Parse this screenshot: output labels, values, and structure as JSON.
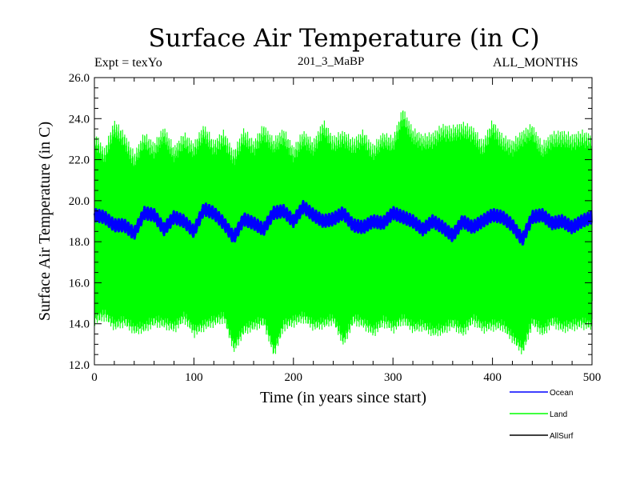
{
  "chart_data": {
    "type": "line",
    "title": "Surface Air Temperature (in C)",
    "left_note": "Expt = texYo",
    "center_note": "201_3_MaBP",
    "right_note": "ALL_MONTHS",
    "xlabel": "Time (in years since start)",
    "ylabel": "Surface Air Temperature (in C)",
    "xlim": [
      0,
      500
    ],
    "ylim": [
      12.0,
      26.0
    ],
    "x_ticks": [
      "0",
      "100",
      "200",
      "300",
      "400",
      "500"
    ],
    "y_ticks": [
      "12.0",
      "14.0",
      "16.0",
      "18.0",
      "20.0",
      "22.0",
      "24.0",
      "26.0"
    ],
    "grid": false,
    "legend_position": "bottom-right, below plot",
    "series": [
      {
        "name": "Ocean",
        "color": "#0000ff",
        "x": [
          0,
          10,
          20,
          30,
          40,
          50,
          60,
          70,
          80,
          90,
          100,
          110,
          120,
          130,
          140,
          150,
          160,
          170,
          180,
          190,
          200,
          210,
          220,
          230,
          240,
          250,
          260,
          270,
          280,
          290,
          300,
          310,
          320,
          330,
          340,
          350,
          360,
          370,
          380,
          390,
          400,
          410,
          420,
          430,
          440,
          450,
          460,
          470,
          480,
          490,
          500
        ],
        "y": [
          19.3,
          19.2,
          18.8,
          18.8,
          18.4,
          19.4,
          19.3,
          18.6,
          19.2,
          19.0,
          18.5,
          19.6,
          19.4,
          18.9,
          18.2,
          19.1,
          18.9,
          18.6,
          19.4,
          19.5,
          19.0,
          19.7,
          19.3,
          19.0,
          19.1,
          19.4,
          18.8,
          18.7,
          19.0,
          18.9,
          19.4,
          19.2,
          19.0,
          18.6,
          19.0,
          18.7,
          18.3,
          19.0,
          18.7,
          19.0,
          19.3,
          19.2,
          18.8,
          18.1,
          19.2,
          19.3,
          18.9,
          19.0,
          18.7,
          19.0,
          19.2
        ]
      },
      {
        "name": "Land",
        "color": "#00ff00",
        "x": [
          0,
          10,
          20,
          30,
          40,
          50,
          60,
          70,
          80,
          90,
          100,
          110,
          120,
          130,
          140,
          150,
          160,
          170,
          180,
          190,
          200,
          210,
          220,
          230,
          240,
          250,
          260,
          270,
          280,
          290,
          300,
          310,
          320,
          330,
          340,
          350,
          360,
          370,
          380,
          390,
          400,
          410,
          420,
          430,
          440,
          450,
          460,
          470,
          480,
          490,
          500
        ],
        "max": [
          23.5,
          22.6,
          24.0,
          23.4,
          22.4,
          23.4,
          22.9,
          23.7,
          22.7,
          23.4,
          22.9,
          23.8,
          23.0,
          23.5,
          22.5,
          23.6,
          23.0,
          23.8,
          23.1,
          23.6,
          22.7,
          23.5,
          23.0,
          24.0,
          23.2,
          23.5,
          23.1,
          23.5,
          22.8,
          23.4,
          23.2,
          24.6,
          23.6,
          23.3,
          23.4,
          23.8,
          23.7,
          23.9,
          23.7,
          23.0,
          24.0,
          23.3,
          23.0,
          23.5,
          23.8,
          22.9,
          23.4,
          23.5,
          23.3,
          23.5,
          23.3
        ],
        "min": [
          13.9,
          14.1,
          13.6,
          13.8,
          13.4,
          13.5,
          13.8,
          13.7,
          13.5,
          14.0,
          13.3,
          13.6,
          13.8,
          14.0,
          12.5,
          13.4,
          13.6,
          13.8,
          12.3,
          13.6,
          13.8,
          14.0,
          13.6,
          13.7,
          13.9,
          12.8,
          13.9,
          13.7,
          13.3,
          13.8,
          13.5,
          13.9,
          13.5,
          13.6,
          13.3,
          13.4,
          13.7,
          13.3,
          13.9,
          13.5,
          13.6,
          13.6,
          13.0,
          12.4,
          13.8,
          13.3,
          13.8,
          13.5,
          13.6,
          13.7,
          13.6
        ]
      },
      {
        "name": "AllSurf",
        "color": "#000000",
        "x": [],
        "y": []
      }
    ]
  }
}
